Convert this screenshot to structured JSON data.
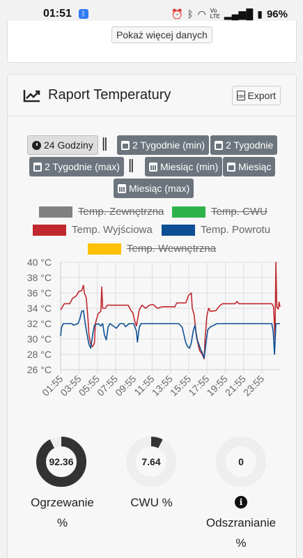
{
  "status": {
    "time": "01:51",
    "battery": "96%"
  },
  "top": {
    "more_button": "Pokaż więcej danych"
  },
  "header": {
    "title": "Raport Temperatury",
    "export": "Export",
    "csv": "CSV"
  },
  "periods": [
    {
      "label": "24 Godziny",
      "icon": "clock-icon",
      "active": true
    },
    {
      "label": "2 Tygodnie (min)",
      "icon": "calendar-icon"
    },
    {
      "label": "2 Tygodnie",
      "icon": "calendar-icon"
    },
    {
      "label": "2 Tygodnie (max)",
      "icon": "calendar-icon"
    },
    {
      "label": "Miesiąc (min)",
      "icon": "calendar-grid-icon"
    },
    {
      "label": "Miesiąc",
      "icon": "calendar-icon"
    },
    {
      "label": "Miesiąc (max)",
      "icon": "calendar-grid-icon"
    }
  ],
  "separator": "||",
  "legend": [
    {
      "label": "Temp. Zewnętrzna",
      "color": "#808080",
      "hidden": true
    },
    {
      "label": "Temp. CWU",
      "color": "#2db34a",
      "hidden": true
    },
    {
      "label": "Temp. Wyjściowa",
      "color": "#c0282d",
      "hidden": false
    },
    {
      "label": "Temp. Powrotu",
      "color": "#0d4f94",
      "hidden": false
    },
    {
      "label": "Temp. Wewnętrzna",
      "color": "#ffc107",
      "hidden": true
    }
  ],
  "chart_data": {
    "type": "line",
    "y_ticks": [
      "40 °C",
      "38 °C",
      "36 °C",
      "34 °C",
      "32 °C",
      "30 °C",
      "28 °C",
      "26 °C"
    ],
    "ylim": [
      26,
      40
    ],
    "x_ticks": [
      "01:55",
      "03:55",
      "05:55",
      "07:55",
      "09:55",
      "11:55",
      "13:55",
      "15:55",
      "17:55",
      "19:55",
      "21:55",
      "23:55"
    ],
    "x_range": [
      1.9,
      25.9
    ],
    "series": [
      {
        "name": "Temp. Wyjściowa",
        "color": "#c0282d",
        "points": [
          [
            1.9,
            33.8
          ],
          [
            2.3,
            34.6
          ],
          [
            2.9,
            34.6
          ],
          [
            3.2,
            35.3
          ],
          [
            3.6,
            35.6
          ],
          [
            3.9,
            36.2
          ],
          [
            4.2,
            36.3
          ],
          [
            4.4,
            37
          ],
          [
            4.5,
            36
          ],
          [
            4.7,
            35.4
          ],
          [
            4.9,
            32.5
          ],
          [
            5.0,
            30.5
          ],
          [
            5.2,
            29.3
          ],
          [
            5.4,
            29.0
          ],
          [
            5.6,
            29.5
          ],
          [
            5.7,
            32
          ],
          [
            6.0,
            33.3
          ],
          [
            6.3,
            33.6
          ],
          [
            6.4,
            36.8
          ],
          [
            6.5,
            34
          ],
          [
            6.8,
            34
          ],
          [
            7.0,
            34.4
          ],
          [
            9.3,
            34.4
          ],
          [
            9.6,
            33.7
          ],
          [
            9.8,
            33.4
          ],
          [
            10.0,
            32.4
          ],
          [
            10.2,
            31.7
          ],
          [
            10.5,
            33.8
          ],
          [
            10.8,
            34.4
          ],
          [
            11.2,
            34.0
          ],
          [
            11.6,
            34.4
          ],
          [
            12.0,
            34.5
          ],
          [
            12.5,
            34.0
          ],
          [
            13.0,
            34.2
          ],
          [
            14.4,
            34.2
          ],
          [
            14.6,
            34.7
          ],
          [
            15.6,
            34.7
          ],
          [
            15.9,
            35.7
          ],
          [
            16.2,
            36
          ],
          [
            16.3,
            34
          ],
          [
            16.5,
            33.2
          ],
          [
            16.7,
            31
          ],
          [
            16.9,
            29.5
          ],
          [
            17.1,
            28.5
          ],
          [
            17.4,
            28
          ],
          [
            17.6,
            27.4
          ],
          [
            17.7,
            30
          ],
          [
            17.9,
            33
          ],
          [
            18.1,
            34
          ],
          [
            18.3,
            33.6
          ],
          [
            18.9,
            33.7
          ],
          [
            19.2,
            34.2
          ],
          [
            19.6,
            34.6
          ],
          [
            21.0,
            34.6
          ],
          [
            21.2,
            34.9
          ],
          [
            21.4,
            34.6
          ],
          [
            25.0,
            34.6
          ],
          [
            25.2,
            34.2
          ],
          [
            25.35,
            30
          ],
          [
            25.45,
            40
          ],
          [
            25.55,
            34.2
          ],
          [
            25.7,
            33.9
          ],
          [
            25.8,
            34.8
          ],
          [
            25.9,
            34.2
          ]
        ]
      },
      {
        "name": "Temp. Powrotu",
        "color": "#0d4f94",
        "points": [
          [
            1.9,
            30.4
          ],
          [
            2.0,
            31.5
          ],
          [
            2.2,
            32.0
          ],
          [
            3.1,
            32.0
          ],
          [
            3.3,
            31.8
          ],
          [
            3.8,
            32.0
          ],
          [
            4.0,
            32.6
          ],
          [
            4.2,
            33.6
          ],
          [
            4.4,
            33.7
          ],
          [
            4.6,
            32.0
          ],
          [
            4.8,
            30.5
          ],
          [
            5.0,
            29.3
          ],
          [
            5.2,
            28.8
          ],
          [
            5.4,
            30.5
          ],
          [
            5.6,
            31.8
          ],
          [
            6.0,
            32.0
          ],
          [
            6.3,
            31.7
          ],
          [
            6.5,
            32.0
          ],
          [
            6.7,
            30.5
          ],
          [
            6.9,
            29.9
          ],
          [
            7.1,
            31.6
          ],
          [
            7.3,
            32.0
          ],
          [
            8.0,
            31.4
          ],
          [
            8.4,
            32.0
          ],
          [
            8.8,
            32.0
          ],
          [
            9.0,
            31.6
          ],
          [
            9.4,
            32.0
          ],
          [
            9.9,
            32.0
          ],
          [
            10.2,
            31.0
          ],
          [
            10.3,
            29.6
          ],
          [
            10.5,
            31.5
          ],
          [
            10.7,
            32.0
          ],
          [
            14.8,
            32.0
          ],
          [
            15.0,
            31.8
          ],
          [
            15.2,
            31.5
          ],
          [
            15.4,
            30.5
          ],
          [
            15.6,
            29.5
          ],
          [
            15.8,
            29.0
          ],
          [
            16.0,
            28.8
          ],
          [
            16.2,
            29.5
          ],
          [
            16.4,
            31.0
          ],
          [
            16.6,
            31.8
          ],
          [
            16.8,
            30.0
          ],
          [
            17.0,
            29.4
          ],
          [
            17.2,
            28.7
          ],
          [
            17.4,
            28.2
          ],
          [
            17.6,
            27.5
          ],
          [
            17.8,
            29.5
          ],
          [
            18.0,
            31.2
          ],
          [
            18.3,
            31.6
          ],
          [
            18.7,
            31.8
          ],
          [
            19.0,
            32.0
          ],
          [
            25.0,
            32.0
          ],
          [
            25.15,
            31.0
          ],
          [
            25.3,
            28.0
          ],
          [
            25.45,
            32.0
          ],
          [
            25.9,
            32.0
          ]
        ]
      },
      {
        "name": "Temp. Zewnętrzna",
        "color": "#808080",
        "hidden": true,
        "points": []
      },
      {
        "name": "Temp. CWU",
        "color": "#2db34a",
        "hidden": true,
        "points": []
      },
      {
        "name": "Temp. Wewnętrzna",
        "color": "#ffc107",
        "hidden": true,
        "points": []
      }
    ]
  },
  "donuts": [
    {
      "value": 92.36,
      "text": "92.36",
      "label_line1": "Ogrzewanie",
      "label_line2": "%"
    },
    {
      "value": 7.64,
      "text": "7.64",
      "label_line1": "CWU %",
      "label_line2": ""
    },
    {
      "value": 0,
      "text": "0",
      "label_line1": "Odszranianie",
      "label_line2": "%",
      "icon": "info-icon"
    }
  ],
  "colors": {
    "donut_fill": "#333333",
    "donut_track": "#eeeeee",
    "button_gray": "#6c757d"
  }
}
